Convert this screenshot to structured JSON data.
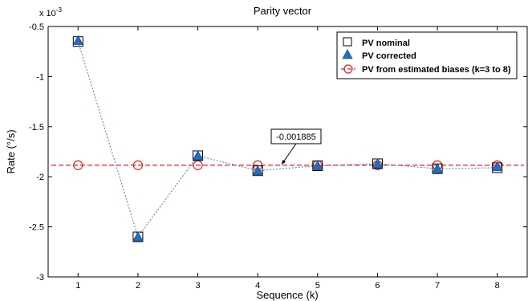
{
  "chart_data": {
    "type": "line",
    "title": "Parity vector",
    "xlabel": "Sequence (k)",
    "ylabel": "Rate (°/s)",
    "y_multiplier_base": "x 10",
    "y_multiplier_exp": "-3",
    "x": [
      1,
      2,
      3,
      4,
      5,
      6,
      7,
      8
    ],
    "xlim": [
      0.5,
      8.5
    ],
    "ylim": [
      -3.0,
      -0.5
    ],
    "x_ticks": [
      "1",
      "2",
      "3",
      "4",
      "5",
      "6",
      "7",
      "8"
    ],
    "y_ticks": [
      -0.5,
      -1,
      -1.5,
      -2,
      -2.5,
      -3
    ],
    "y_tick_labels": [
      "-0.5",
      "-1",
      "-1.5",
      "-2",
      "-2.5",
      "-3"
    ],
    "grid": false,
    "legend_position": "top-right",
    "series": [
      {
        "name": "PV nominal",
        "marker": "square",
        "values": [
          -0.65,
          -2.6,
          -1.79,
          -1.94,
          -1.89,
          -1.87,
          -1.92,
          -1.91
        ],
        "line": "dotted",
        "color": "#4a7ab5"
      },
      {
        "name": "PV corrected",
        "marker": "triangle",
        "values": [
          -0.64,
          -2.6,
          -1.79,
          -1.94,
          -1.89,
          -1.87,
          -1.92,
          -1.9
        ],
        "line": "none",
        "color": "#1f6fc6"
      },
      {
        "name": "PV from estimated biases (k=3 to 8)",
        "marker": "circle",
        "values": [
          -1.885,
          -1.885,
          -1.885,
          -1.885,
          -1.885,
          -1.885,
          -1.885,
          -1.885
        ],
        "line": "dashed",
        "color": "#e32020"
      }
    ],
    "annotation": {
      "text": "-0.001885",
      "x": 4.4,
      "y": -1.885
    }
  }
}
